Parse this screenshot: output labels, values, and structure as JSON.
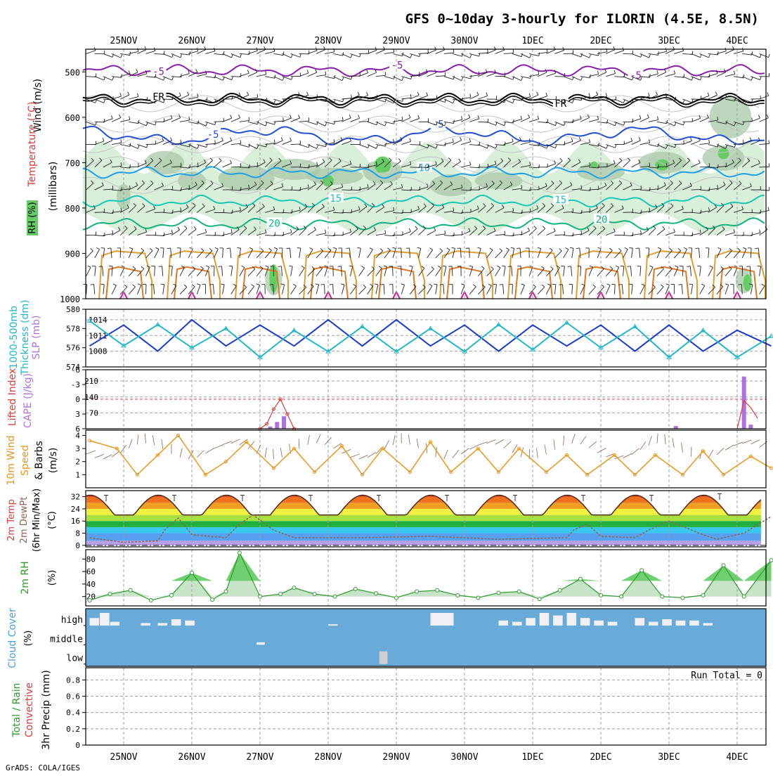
{
  "title": "GFS 0~10day 3-hourly for ILORIN (4.5E, 8.5N)",
  "credit": "GrADS: COLA/IGES",
  "dates": [
    "25NOV",
    "26NOV",
    "27NOV",
    "28NOV",
    "29NOV",
    "30NOV",
    "1DEC",
    "2DEC",
    "3DEC",
    "4DEC"
  ],
  "colors": {
    "frame": "#000000",
    "grid": "#a0a0a0",
    "rh_light": "#d4ecd4",
    "rh_mid": "#a8c8a8",
    "rh_high": "#66cc66",
    "slp": "#1a3cc8",
    "thickness": "#22b8c8",
    "lifted": "#e03c3c",
    "cape": "#b070e0",
    "wind10": "#e89820",
    "dewpt": "#8c6450",
    "rh2m": "#2e9a2e",
    "cloud_bg": "#68aad8",
    "cloud_fg": "#f0f0f4",
    "run_total": "#000000"
  },
  "upper": {
    "ylabel_wind": "Wind (m/s)",
    "ylabel_temp": "Temperature (°C)",
    "ylabel_mb": "(millibars)",
    "ylabel_rh": "RH (%)",
    "ylevels": [
      500,
      600,
      700,
      800,
      900,
      1000
    ],
    "ylim": [
      450,
      1000
    ],
    "contours": [
      {
        "label": "-5",
        "color": "#8a1ea8",
        "level": 497,
        "labels_at": [
          0.5,
          4.0,
          7.5
        ]
      },
      {
        "label": "FR",
        "color": "#000000",
        "level": 560,
        "labels_at": [
          0.5,
          6.4
        ]
      },
      {
        "label": "-5",
        "color": "#2050d0",
        "level": 640,
        "labels_at": [
          1.3,
          4.6
        ]
      },
      {
        "label": "10",
        "color": "#1ea0e8",
        "level": 722,
        "labels_at": [
          4.4
        ]
      },
      {
        "label": "15",
        "color": "#16c8b8",
        "level": 785,
        "labels_at": [
          3.1,
          6.4
        ]
      },
      {
        "label": "20",
        "color": "#10b47c",
        "level": 835,
        "labels_at": [
          2.2,
          7.0
        ]
      }
    ]
  },
  "chart_data": [
    {
      "type": "line",
      "panel": "slp_thickness",
      "ylabel_left": "Thickness (dm)",
      "ylabel_left_top": "1000-500mb",
      "ylabel_right": "SLP (mb)",
      "left_ticks": [
        574,
        576,
        578,
        580
      ],
      "right_ticks": [
        1008,
        1011,
        1014
      ],
      "series": [
        {
          "name": "SLP (mb)",
          "color": "#1a3cc8",
          "x": [
            0.0,
            0.5,
            1.0,
            1.5,
            2.0,
            2.5,
            3.0,
            3.5,
            4.0,
            4.5,
            5.0,
            5.5,
            6.0,
            6.5,
            7.0,
            7.5,
            8.0,
            8.5,
            9.0,
            9.5,
            10.0
          ],
          "values": [
            1009,
            1013,
            1008,
            1014,
            1009,
            1013,
            1009,
            1014,
            1009,
            1014,
            1009,
            1013,
            1008,
            1013,
            1009,
            1013,
            1008,
            1013,
            1008,
            1012,
            1009
          ]
        },
        {
          "name": "Thickness (dm)",
          "color": "#22b8c8",
          "x": [
            0.0,
            0.5,
            1.0,
            1.5,
            2.0,
            2.5,
            3.0,
            3.5,
            4.0,
            4.5,
            5.0,
            5.5,
            6.0,
            6.5,
            7.0,
            7.5,
            8.0,
            8.5,
            9.0,
            9.5,
            10.0
          ],
          "values": [
            578.8,
            576.2,
            578.4,
            576.0,
            578.0,
            575.0,
            577.8,
            575.6,
            578.2,
            575.6,
            578.0,
            575.6,
            578.4,
            575.8,
            578.6,
            576.0,
            578.2,
            575.0,
            577.8,
            575.0,
            577.2
          ]
        }
      ]
    },
    {
      "type": "bar",
      "panel": "cape_li",
      "ylabel_left": "Lifted Index",
      "ylabel_right": "CAPE (J/kg)",
      "li_ticks": [
        6,
        3,
        0,
        -3,
        -6
      ],
      "cape_ticks": [
        70,
        140,
        210
      ],
      "cape_x": [
        2.15,
        2.25,
        2.35,
        8.1,
        9.1,
        9.2
      ],
      "cape_values": [
        10,
        30,
        55,
        12,
        230,
        18
      ],
      "li_x": [
        2.0,
        2.1,
        2.2,
        2.3,
        2.4,
        2.5
      ],
      "li_values": [
        6,
        5,
        2,
        0,
        3,
        6
      ]
    },
    {
      "type": "line",
      "panel": "wind10m",
      "ylabel": "10m Wind Speed & Barbs (m/s)",
      "ylabel_l1": "10m Wind",
      "ylabel_l2": "Speed",
      "ylabel_l3": "& Barbs",
      "ylabel_l4": "(m/s)",
      "ticks": [
        1,
        2,
        3,
        4
      ],
      "x": [
        0.0,
        0.4,
        0.7,
        1.0,
        1.3,
        1.7,
        2.0,
        2.3,
        2.7,
        3.0,
        3.3,
        3.7,
        4.0,
        4.3,
        4.7,
        5.0,
        5.3,
        5.7,
        6.0,
        6.3,
        6.7,
        7.0,
        7.3,
        7.7,
        8.0,
        8.3,
        8.7,
        9.0,
        9.3,
        9.7,
        10.0
      ],
      "values": [
        3.6,
        3.0,
        1.0,
        2.5,
        4.0,
        1.0,
        2.0,
        3.5,
        1.5,
        3.0,
        1.2,
        3.2,
        1.0,
        3.0,
        1.2,
        3.5,
        1.2,
        3.0,
        1.2,
        3.0,
        1.2,
        2.5,
        1.0,
        2.5,
        1.0,
        2.5,
        1.0,
        2.8,
        1.0,
        2.4,
        1.5
      ]
    },
    {
      "type": "area",
      "panel": "temp2m",
      "ylabel_l1": "2m Temp",
      "ylabel_l2": "2m DewPt",
      "ylabel_l3": "(6hr Min/Max)",
      "ylabel_l4": "(°C)",
      "ticks": [
        0,
        8,
        16,
        24,
        32
      ],
      "temp_max": [
        33,
        33,
        33,
        33,
        33,
        33,
        33,
        33,
        33,
        34
      ],
      "temp_min": [
        21,
        21,
        21,
        21,
        21,
        21,
        21,
        21,
        21,
        21
      ],
      "dewpt_x": [
        0.0,
        0.5,
        1.0,
        1.1,
        1.3,
        1.5,
        2.0,
        2.2,
        2.4,
        2.7,
        3.0,
        4.0,
        5.0,
        6.0,
        7.0,
        7.1,
        7.3,
        7.5,
        8.0,
        8.2,
        8.5,
        9.0,
        9.2,
        9.6,
        10.0
      ],
      "dewpt_values": [
        5,
        2,
        3,
        10,
        18,
        7,
        5,
        14,
        20,
        10,
        5,
        5,
        6,
        4,
        5,
        10,
        14,
        6,
        5,
        10,
        16,
        7,
        4,
        8,
        19
      ]
    },
    {
      "type": "area",
      "panel": "rh2m",
      "ylabel": "2m RH",
      "unit": "(%)",
      "ticks": [
        20,
        40,
        60,
        80
      ],
      "x": [
        0.0,
        0.3,
        0.6,
        0.9,
        1.2,
        1.5,
        1.8,
        2.0,
        2.2,
        2.5,
        2.8,
        3.0,
        3.3,
        3.6,
        3.9,
        4.2,
        4.5,
        4.8,
        5.1,
        5.4,
        5.7,
        6.0,
        6.3,
        6.6,
        6.9,
        7.2,
        7.5,
        7.8,
        8.1,
        8.4,
        8.7,
        9.0,
        9.3,
        9.6,
        10.0
      ],
      "values": [
        14,
        24,
        30,
        14,
        22,
        58,
        15,
        28,
        90,
        20,
        24,
        34,
        24,
        20,
        32,
        25,
        18,
        28,
        30,
        22,
        18,
        26,
        28,
        16,
        30,
        48,
        22,
        20,
        62,
        20,
        18,
        22,
        70,
        20,
        78
      ]
    },
    {
      "type": "bar",
      "panel": "cloud",
      "ylabel": "Cloud Cover (%)",
      "ylabel_l1": "Cloud Cover",
      "ylabel_l2": "(%)",
      "levels": [
        "high",
        "middle",
        "low"
      ],
      "high_x": [
        0.0,
        0.15,
        0.3,
        0.75,
        1.0,
        1.2,
        1.4,
        3.5,
        5.0,
        5.1,
        5.2,
        6.0,
        6.2,
        6.4,
        6.6,
        6.8,
        7.0,
        7.2,
        7.4,
        7.6,
        8.0,
        8.2,
        8.4,
        8.6,
        8.8,
        9.0
      ],
      "high_values": [
        60,
        100,
        30,
        20,
        20,
        50,
        40,
        10,
        100,
        100,
        100,
        40,
        30,
        60,
        100,
        80,
        100,
        60,
        40,
        30,
        60,
        30,
        50,
        40,
        40,
        20
      ],
      "middle_x": [
        2.45
      ],
      "middle_values": [
        20
      ],
      "low_x": [
        4.25
      ],
      "low_values": [
        100
      ]
    },
    {
      "type": "bar",
      "panel": "precip",
      "ylabel_l1": "Total / Rain",
      "ylabel_l2": "Convective",
      "ylabel": "3hr Precip (mm)",
      "ticks": [
        0,
        0.2,
        0.4,
        0.6,
        0.8
      ],
      "run_total": "Run Total = 0",
      "values": []
    }
  ]
}
